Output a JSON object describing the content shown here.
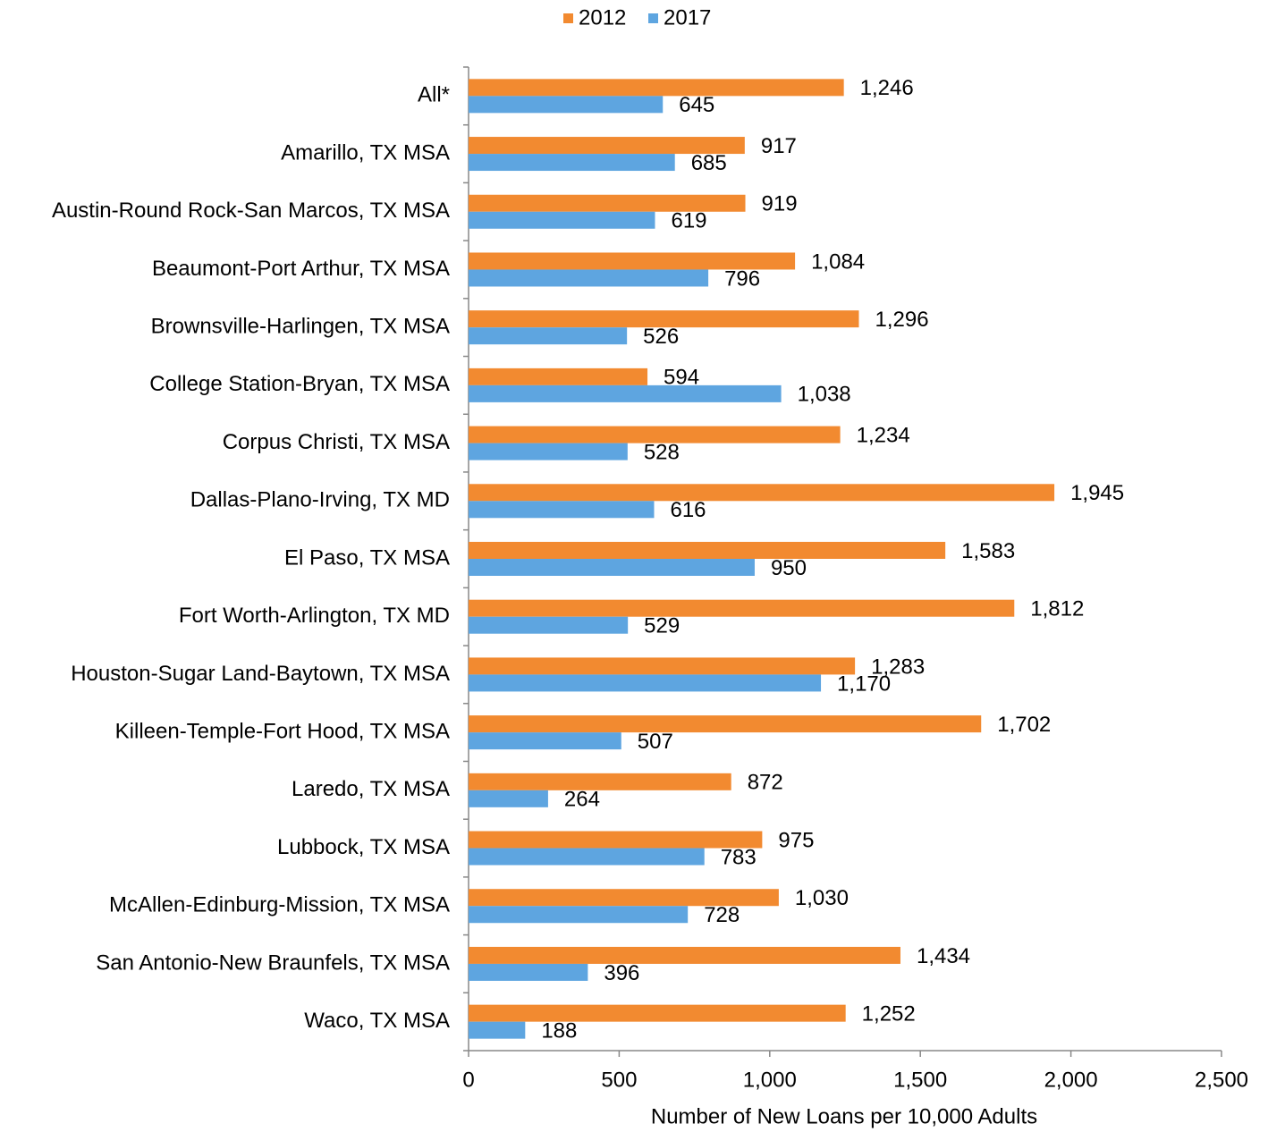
{
  "chart_data": {
    "type": "bar",
    "orientation": "horizontal",
    "x_label": "Number of New Loans per 10,000 Adults",
    "categories": [
      "All*",
      "Amarillo, TX MSA",
      "Austin-Round Rock-San Marcos, TX MSA",
      "Beaumont-Port Arthur, TX MSA",
      "Brownsville-Harlingen, TX MSA",
      "College Station-Bryan, TX MSA",
      "Corpus Christi, TX MSA",
      "Dallas-Plano-Irving, TX MD",
      "El Paso, TX MSA",
      "Fort Worth-Arlington, TX MD",
      "Houston-Sugar Land-Baytown, TX MSA",
      "Killeen-Temple-Fort Hood, TX MSA",
      "Laredo, TX MSA",
      "Lubbock, TX MSA",
      "McAllen-Edinburg-Mission, TX MSA",
      "San Antonio-New Braunfels, TX MSA",
      "Waco, TX MSA"
    ],
    "series": [
      {
        "name": "2012",
        "color": "#f28a30",
        "values": [
          1246,
          917,
          919,
          1084,
          1296,
          594,
          1234,
          1945,
          1583,
          1812,
          1283,
          1702,
          872,
          975,
          1030,
          1434,
          1252
        ],
        "value_labels": [
          "1,246",
          "917",
          "919",
          "1,084",
          "1,296",
          "594",
          "1,234",
          "1,945",
          "1,583",
          "1,812",
          "1,283",
          "1,702",
          "872",
          "975",
          "1,030",
          "1,434",
          "1,252"
        ]
      },
      {
        "name": "2017",
        "color": "#5ea5e0",
        "values": [
          645,
          685,
          619,
          796,
          526,
          1038,
          528,
          616,
          950,
          529,
          1170,
          507,
          264,
          783,
          728,
          396,
          188
        ],
        "value_labels": [
          "645",
          "685",
          "619",
          "796",
          "526",
          "1,038",
          "528",
          "616",
          "950",
          "529",
          "1,170",
          "507",
          "264",
          "783",
          "728",
          "396",
          "188"
        ]
      }
    ],
    "xlim": [
      0,
      2500
    ],
    "xticks": [
      0,
      500,
      {
        "value": 1000,
        "label": "1,000"
      },
      {
        "value": 1500,
        "label": "1,500"
      },
      {
        "value": 2000,
        "label": "2,000"
      },
      {
        "value": 2500,
        "label": "2,500"
      }
    ],
    "grid": false,
    "legend": "top"
  }
}
